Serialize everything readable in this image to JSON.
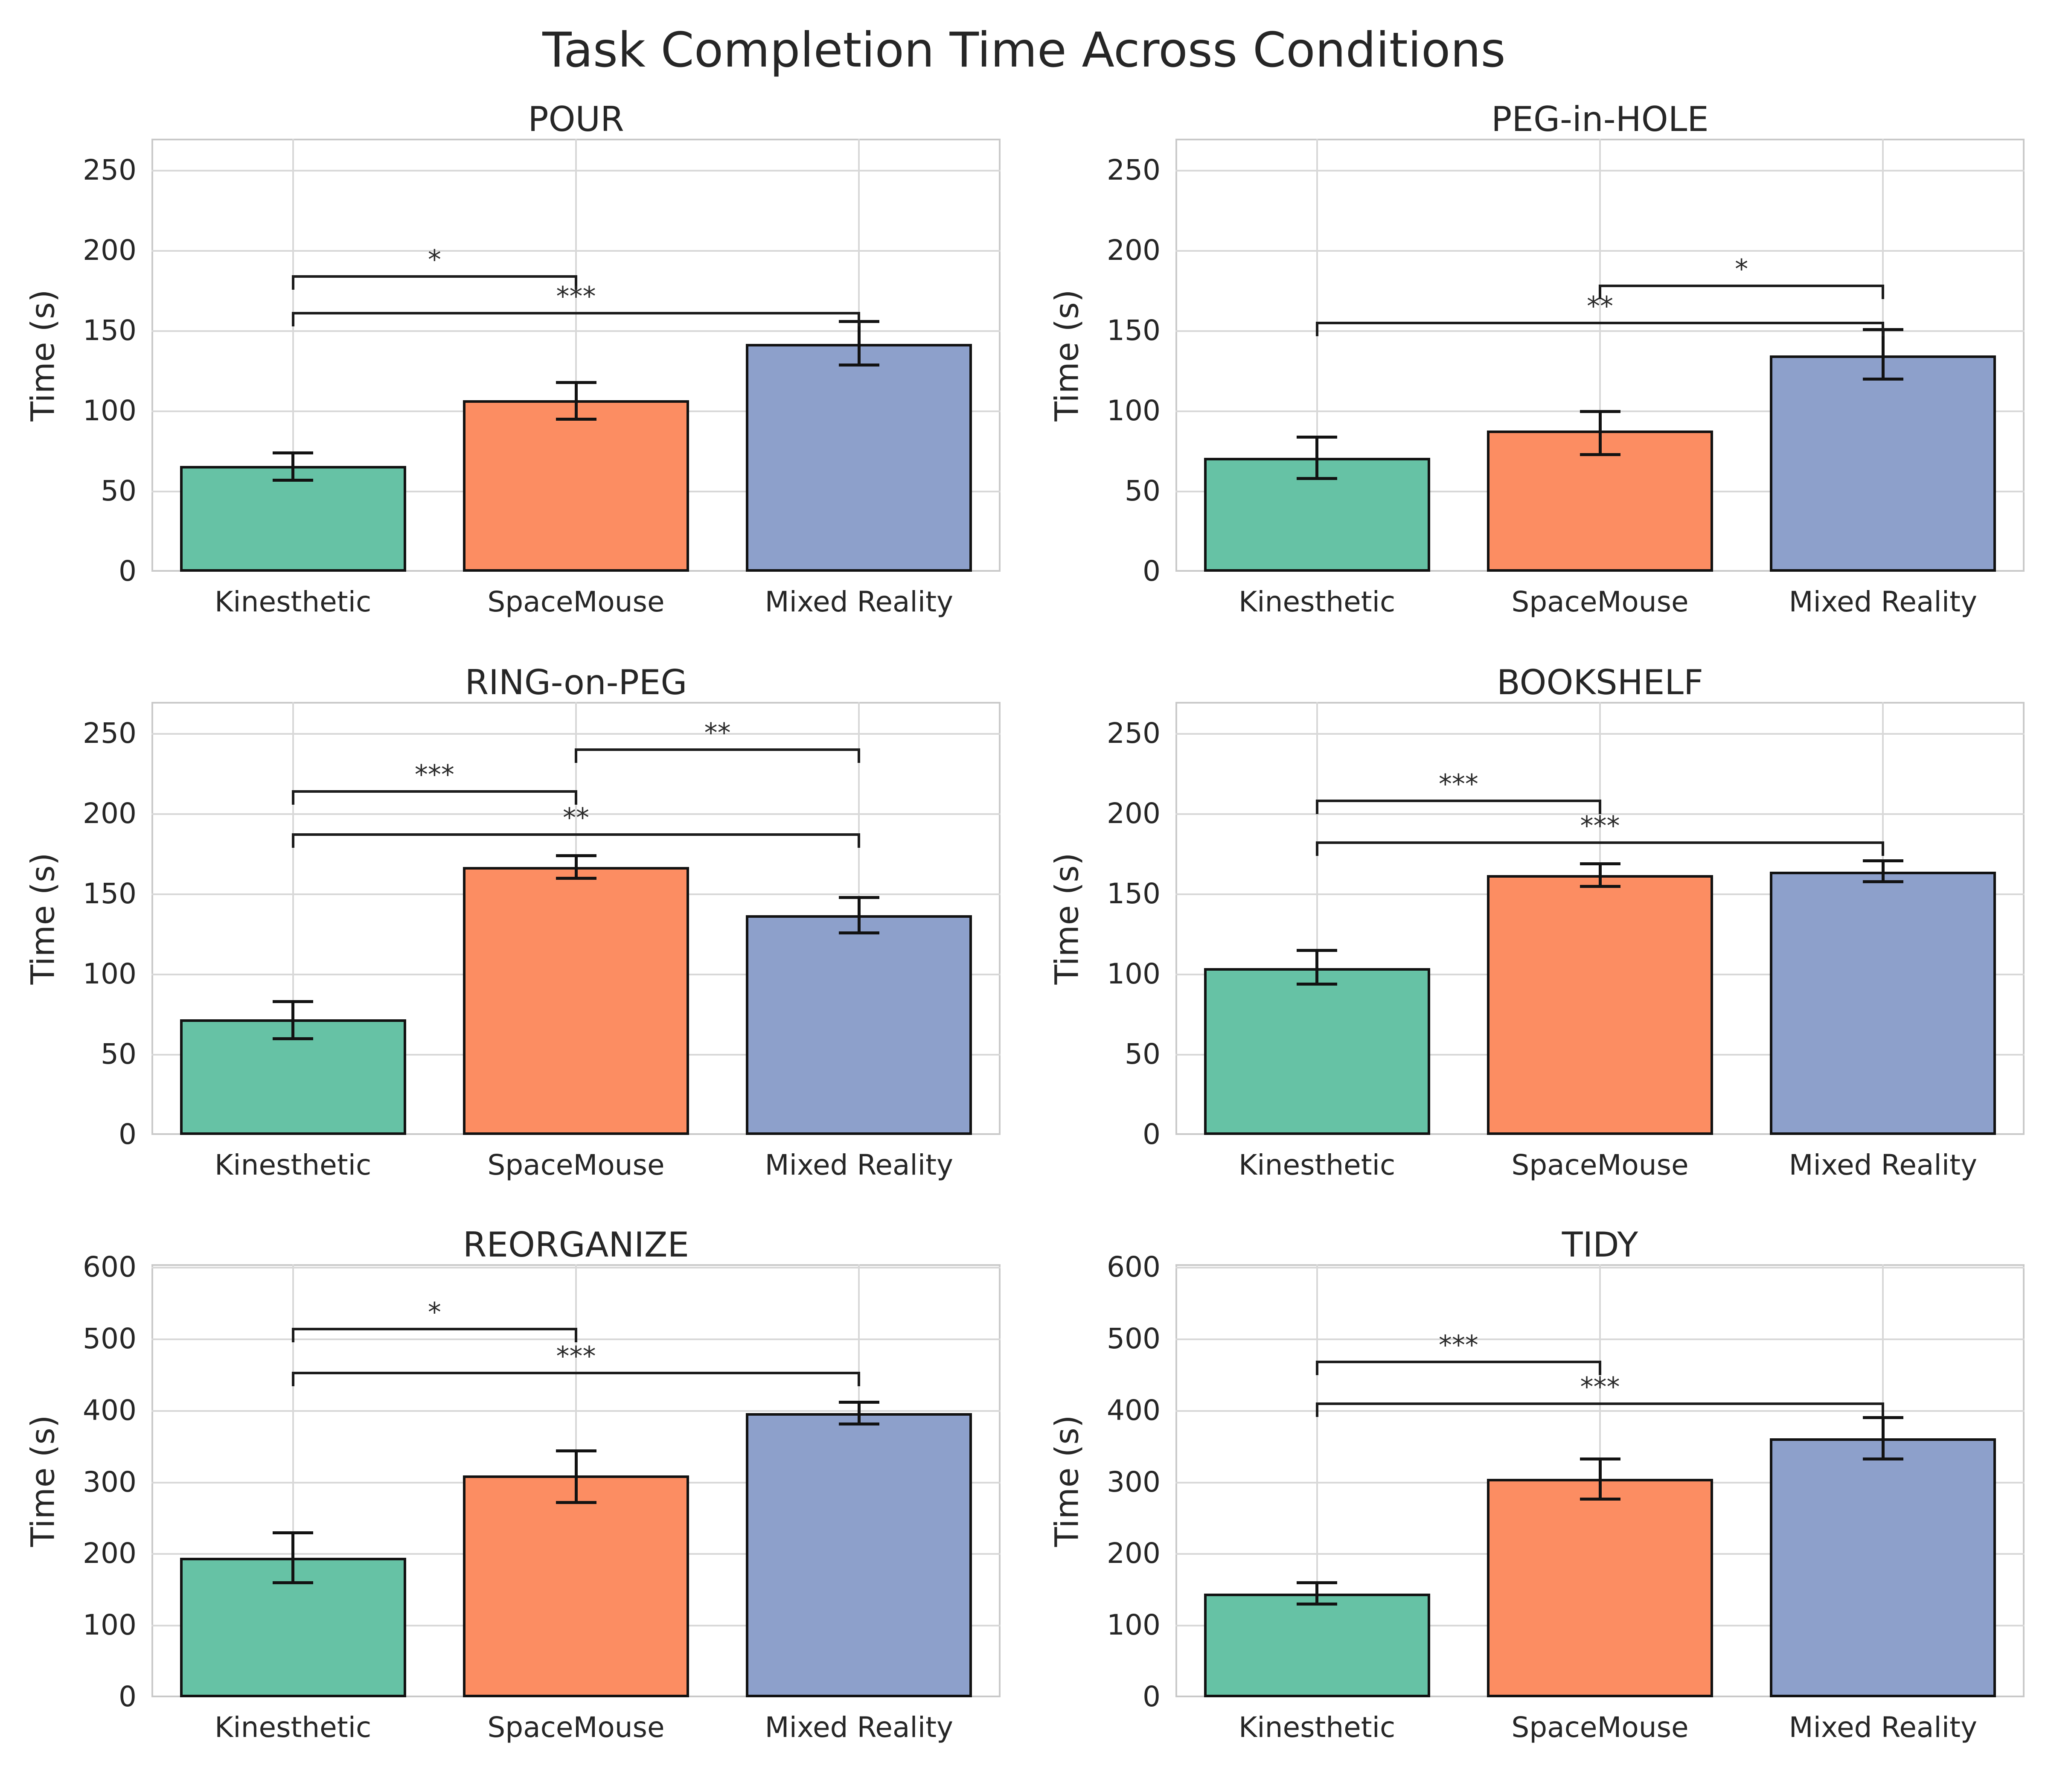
{
  "figure": {
    "suptitle": "Task Completion Time Across Conditions",
    "background_color": "#ffffff",
    "text_color": "#262626",
    "grid_color": "#d8d8d8",
    "spine_color": "#c9c9c9",
    "bar_edge_color": "#121212",
    "bar_colors": [
      "#66c2a5",
      "#fc8d62",
      "#8da0cb"
    ]
  },
  "chart_data": [
    {
      "type": "bar",
      "title": "POUR",
      "ylabel": "Time (s)",
      "categories": [
        "Kinesthetic",
        "SpaceMouse",
        "Mixed Reality"
      ],
      "values": [
        66,
        107,
        142
      ],
      "err_low": [
        57,
        95,
        129
      ],
      "err_high": [
        74,
        118,
        156
      ],
      "ylim": [
        0,
        270
      ],
      "yticks": [
        0,
        50,
        100,
        150,
        200,
        250
      ],
      "grid": true,
      "significance": [
        {
          "pair": [
            0,
            1
          ],
          "label": "*",
          "y": 185
        },
        {
          "pair": [
            0,
            2
          ],
          "label": "***",
          "y": 162
        }
      ]
    },
    {
      "type": "bar",
      "title": "PEG-in-HOLE",
      "ylabel": "Time (s)",
      "categories": [
        "Kinesthetic",
        "SpaceMouse",
        "Mixed Reality"
      ],
      "values": [
        71,
        88,
        135
      ],
      "err_low": [
        58,
        73,
        120
      ],
      "err_high": [
        84,
        100,
        151
      ],
      "ylim": [
        0,
        270
      ],
      "yticks": [
        0,
        50,
        100,
        150,
        200,
        250
      ],
      "grid": true,
      "significance": [
        {
          "pair": [
            1,
            2
          ],
          "label": "*",
          "y": 179
        },
        {
          "pair": [
            0,
            2
          ],
          "label": "**",
          "y": 156
        }
      ]
    },
    {
      "type": "bar",
      "title": "RING-on-PEG",
      "ylabel": "Time (s)",
      "categories": [
        "Kinesthetic",
        "SpaceMouse",
        "Mixed Reality"
      ],
      "values": [
        72,
        167,
        137
      ],
      "err_low": [
        60,
        160,
        126
      ],
      "err_high": [
        83,
        174,
        148
      ],
      "ylim": [
        0,
        270
      ],
      "yticks": [
        0,
        50,
        100,
        150,
        200,
        250
      ],
      "grid": true,
      "significance": [
        {
          "pair": [
            1,
            2
          ],
          "label": "**",
          "y": 241
        },
        {
          "pair": [
            0,
            1
          ],
          "label": "***",
          "y": 215
        },
        {
          "pair": [
            0,
            2
          ],
          "label": "**",
          "y": 188
        }
      ]
    },
    {
      "type": "bar",
      "title": "BOOKSHELF",
      "ylabel": "Time (s)",
      "categories": [
        "Kinesthetic",
        "SpaceMouse",
        "Mixed Reality"
      ],
      "values": [
        104,
        162,
        164
      ],
      "err_low": [
        94,
        155,
        158
      ],
      "err_high": [
        115,
        169,
        171
      ],
      "ylim": [
        0,
        270
      ],
      "yticks": [
        0,
        50,
        100,
        150,
        200,
        250
      ],
      "grid": true,
      "significance": [
        {
          "pair": [
            0,
            1
          ],
          "label": "***",
          "y": 209
        },
        {
          "pair": [
            0,
            2
          ],
          "label": "***",
          "y": 183
        }
      ]
    },
    {
      "type": "bar",
      "title": "REORGANIZE",
      "ylabel": "Time (s)",
      "categories": [
        "Kinesthetic",
        "SpaceMouse",
        "Mixed Reality"
      ],
      "values": [
        195,
        310,
        397
      ],
      "err_low": [
        160,
        272,
        382
      ],
      "err_high": [
        230,
        344,
        412
      ],
      "ylim": [
        0,
        605
      ],
      "yticks": [
        0,
        100,
        200,
        300,
        400,
        500,
        600
      ],
      "grid": true,
      "significance": [
        {
          "pair": [
            0,
            1
          ],
          "label": "*",
          "y": 516
        },
        {
          "pair": [
            0,
            2
          ],
          "label": "***",
          "y": 455
        }
      ]
    },
    {
      "type": "bar",
      "title": "TIDY",
      "ylabel": "Time (s)",
      "categories": [
        "Kinesthetic",
        "SpaceMouse",
        "Mixed Reality"
      ],
      "values": [
        145,
        305,
        362
      ],
      "err_low": [
        130,
        277,
        333
      ],
      "err_high": [
        160,
        333,
        391
      ],
      "ylim": [
        0,
        605
      ],
      "yticks": [
        0,
        100,
        200,
        300,
        400,
        500,
        600
      ],
      "grid": true,
      "significance": [
        {
          "pair": [
            0,
            1
          ],
          "label": "***",
          "y": 470
        },
        {
          "pair": [
            0,
            2
          ],
          "label": "***",
          "y": 412
        }
      ]
    }
  ]
}
